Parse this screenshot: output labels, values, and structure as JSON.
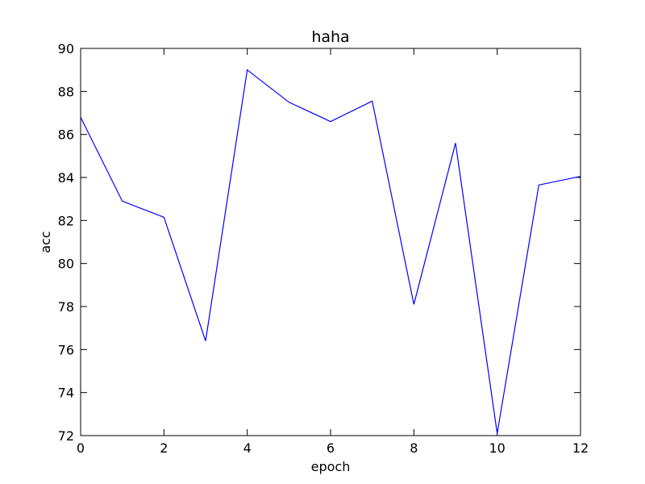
{
  "chart_data": {
    "type": "line",
    "title": "haha",
    "xlabel": "epoch",
    "ylabel": "acc",
    "xlim": [
      0,
      12
    ],
    "ylim": [
      72,
      90
    ],
    "xticks": [
      0,
      2,
      4,
      6,
      8,
      10,
      12
    ],
    "yticks": [
      72,
      74,
      76,
      78,
      80,
      82,
      84,
      86,
      88,
      90
    ],
    "grid": false,
    "series": [
      {
        "color": "#0000ff",
        "x": [
          0,
          1,
          2,
          3,
          4,
          5,
          6,
          7,
          8,
          9,
          10,
          11,
          12
        ],
        "y": [
          86.8,
          82.9,
          82.15,
          76.4,
          89.0,
          87.5,
          86.6,
          87.55,
          78.1,
          85.6,
          72.1,
          83.65,
          84.05
        ]
      }
    ]
  }
}
